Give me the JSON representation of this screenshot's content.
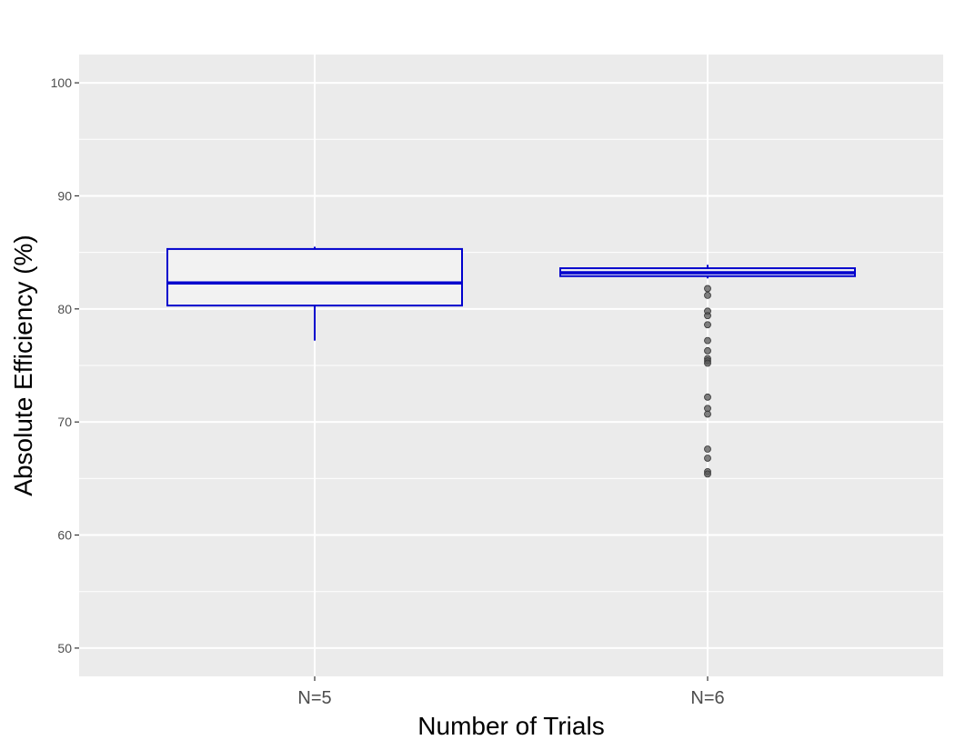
{
  "chart_data": {
    "type": "boxplot",
    "title": "",
    "xlabel": "Number of Trials",
    "ylabel": "Absolute Efficiency (%)",
    "ylim": [
      47.5,
      102.5
    ],
    "yticks": [
      50,
      60,
      70,
      80,
      90,
      100
    ],
    "grid": true,
    "categories": [
      "N=5",
      "N=6"
    ],
    "boxes": [
      {
        "category": "N=5",
        "whisker_low": 77.2,
        "q1": 80.3,
        "median": 82.3,
        "q3": 85.3,
        "whisker_high": 85.5,
        "outliers": []
      },
      {
        "category": "N=6",
        "whisker_low": 82.7,
        "q1": 82.9,
        "median": 83.2,
        "q3": 83.6,
        "whisker_high": 83.9,
        "outliers": [
          81.8,
          81.2,
          79.8,
          79.4,
          78.6,
          77.2,
          76.3,
          75.6,
          75.4,
          75.2,
          72.2,
          71.2,
          70.7,
          67.6,
          66.8,
          65.6,
          65.4
        ]
      }
    ],
    "colors": {
      "panel": "#ebebeb",
      "grid": "#ffffff",
      "box_stroke": "#0000cd",
      "box_fill": "#f2f2f2",
      "outlier": "#555555"
    }
  }
}
